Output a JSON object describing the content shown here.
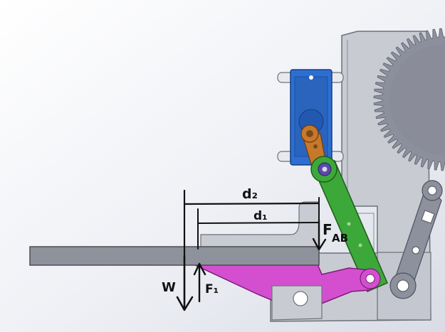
{
  "labels": {
    "d2": "d₂",
    "d1": "d₁",
    "fab": "F",
    "fab_sub": "AB",
    "w": "W",
    "f1": "F₁"
  },
  "colors": {
    "servo": "#2d6fd0",
    "servo_horn": "#c8782a",
    "link_green": "#3da83a",
    "lever_magenta": "#d44fd0",
    "frame_gray": "#c9cbd3",
    "gear_gray": "#8c8f9c",
    "arm_gray": "#8d919d",
    "beam_gray": "#8e929b",
    "ink": "#111111"
  }
}
